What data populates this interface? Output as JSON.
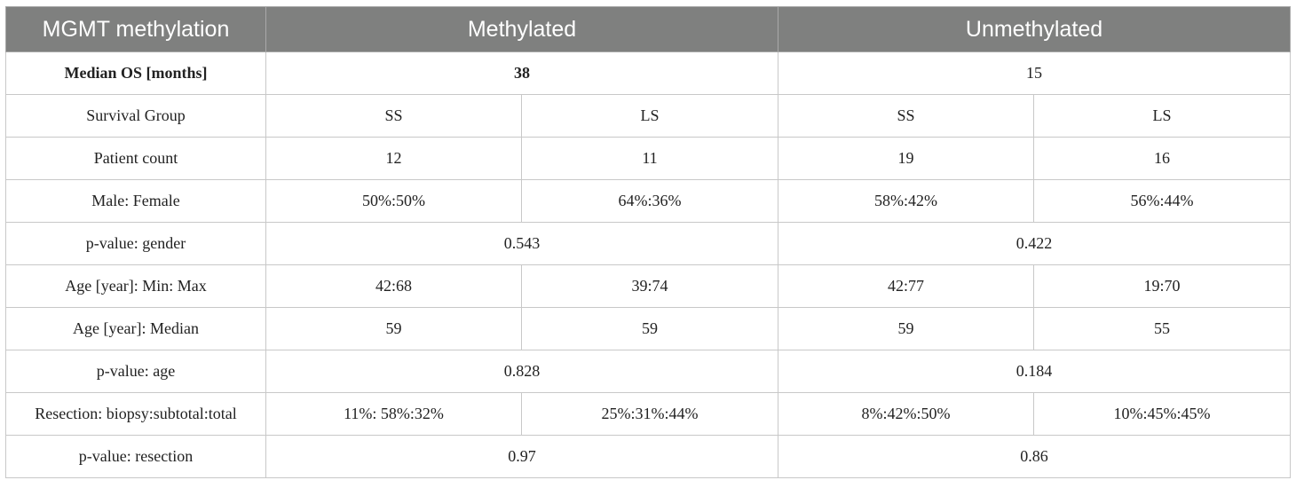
{
  "table": {
    "header": {
      "label": "MGMT methylation",
      "methylated": "Methylated",
      "unmethylated": "Unmethylated"
    },
    "median_os": {
      "label": "Median OS [months]",
      "methylated": "38",
      "unmethylated": "15"
    },
    "survival_group": {
      "label": "Survival Group",
      "m_ss": "SS",
      "m_ls": "LS",
      "u_ss": "SS",
      "u_ls": "LS"
    },
    "patient_count": {
      "label": "Patient count",
      "m_ss": "12",
      "m_ls": "11",
      "u_ss": "19",
      "u_ls": "16"
    },
    "male_female": {
      "label": "Male: Female",
      "m_ss": "50%:50%",
      "m_ls": "64%:36%",
      "u_ss": "58%:42%",
      "u_ls": "56%:44%"
    },
    "p_gender": {
      "label": "p-value: gender",
      "methylated": "0.543",
      "unmethylated": "0.422"
    },
    "age_min_max": {
      "label": "Age [year]: Min: Max",
      "m_ss": "42:68",
      "m_ls": "39:74",
      "u_ss": "42:77",
      "u_ls": "19:70"
    },
    "age_median": {
      "label": "Age [year]: Median",
      "m_ss": "59",
      "m_ls": "59",
      "u_ss": "59",
      "u_ls": "55"
    },
    "p_age": {
      "label": "p-value: age",
      "methylated": "0.828",
      "unmethylated": "0.184"
    },
    "resection": {
      "label": "Resection: biopsy:subtotal:total",
      "m_ss": "11%: 58%:32%",
      "m_ls": "25%:31%:44%",
      "u_ss": "8%:42%:50%",
      "u_ls": "10%:45%:45%"
    },
    "p_resection": {
      "label": "p-value: resection",
      "methylated": "0.97",
      "unmethylated": "0.86"
    }
  }
}
